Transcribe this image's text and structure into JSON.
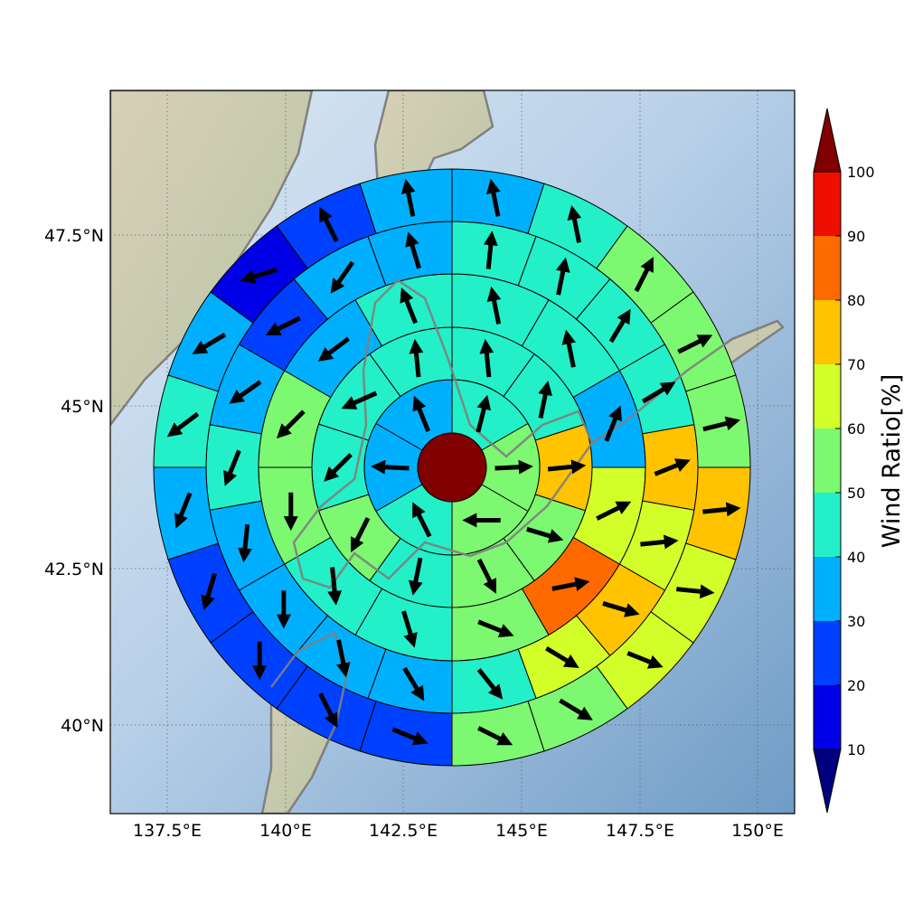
{
  "chart_data": {
    "type": "polar_sector_map",
    "map": {
      "lon_ticks": [
        137.5,
        140,
        142.5,
        145,
        147.5,
        150
      ],
      "lon_tick_labels": [
        "137.5°E",
        "140°E",
        "142.5°E",
        "145°E",
        "147.5°E",
        "150°E"
      ],
      "lat_ticks": [
        47.5,
        45,
        42.5,
        40
      ],
      "lat_tick_labels": [
        "47.5°N",
        "45°N",
        "42.5°N",
        "40°N"
      ],
      "lon_range": [
        136.3,
        150.7
      ],
      "lat_range": [
        38.6,
        49.5
      ],
      "grid": true
    },
    "center": {
      "lon": 143.5,
      "lat": 44.0,
      "value": 100,
      "arrow": null
    },
    "rings": [
      {
        "ring": 1,
        "sectors": [
          {
            "dir": "N",
            "value": 42,
            "arrow": [
              0.25,
              1
            ]
          },
          {
            "dir": "NE",
            "value": 55,
            "arrow": [
              1,
              0.05
            ]
          },
          {
            "dir": "E",
            "value": 53,
            "arrow": [
              -0.45,
              0
            ]
          },
          {
            "dir": "SE",
            "value": 42,
            "arrow": [
              -0.5,
              1
            ]
          },
          {
            "dir": "S",
            "value": 35,
            "arrow": [
              -1,
              0.05
            ]
          },
          {
            "dir": "SW",
            "value": 35,
            "arrow": [
              -0.4,
              1
            ]
          }
        ]
      },
      {
        "ring": 2,
        "sectors": [
          {
            "value": 45,
            "arrow": [
              -0.1,
              1
            ]
          },
          {
            "value": 45,
            "arrow": [
              0.2,
              1
            ]
          },
          {
            "value": 78,
            "arrow": [
              1,
              0.1
            ]
          },
          {
            "value": 53,
            "arrow": [
              1,
              -0.3
            ]
          },
          {
            "value": 53,
            "arrow": [
              0.5,
              -1
            ]
          },
          {
            "value": 45,
            "arrow": [
              -0.2,
              -1
            ]
          },
          {
            "value": 53,
            "arrow": [
              -0.5,
              -1
            ]
          },
          {
            "value": 45,
            "arrow": [
              -0.7,
              -0.7
            ]
          },
          {
            "value": 45,
            "arrow": [
              -0.9,
              -0.4
            ]
          },
          {
            "value": 45,
            "arrow": [
              -0.1,
              1
            ]
          }
        ]
      },
      {
        "ring": 3,
        "sectors": [
          {
            "value": 45,
            "arrow": [
              -0.2,
              1
            ]
          },
          {
            "value": 45,
            "arrow": [
              -0.2,
              1
            ]
          },
          {
            "value": 35,
            "arrow": [
              0.4,
              1
            ]
          },
          {
            "value": 65,
            "arrow": [
              1,
              0.5
            ]
          },
          {
            "value": 85,
            "arrow": [
              1,
              0.2
            ]
          },
          {
            "value": 55,
            "arrow": [
              1,
              -0.4
            ]
          },
          {
            "value": 45,
            "arrow": [
              0.3,
              -1
            ]
          },
          {
            "value": 45,
            "arrow": [
              0.1,
              -1
            ]
          },
          {
            "value": 55,
            "arrow": [
              0,
              -1
            ]
          },
          {
            "value": 55,
            "arrow": [
              -0.8,
              -0.8
            ]
          },
          {
            "value": 35,
            "arrow": [
              -0.8,
              -0.6
            ]
          },
          {
            "value": 45,
            "arrow": [
              -0.4,
              1
            ]
          }
        ]
      },
      {
        "ring": 4,
        "sectors": [
          {
            "value": 45,
            "arrow": [
              0.1,
              1
            ]
          },
          {
            "value": 45,
            "arrow": [
              0.2,
              1
            ]
          },
          {
            "value": 45,
            "arrow": [
              0.6,
              1
            ]
          },
          {
            "value": 45,
            "arrow": [
              1,
              0.6
            ]
          },
          {
            "value": 75,
            "arrow": [
              1,
              0.4
            ]
          },
          {
            "value": 65,
            "arrow": [
              1,
              0.1
            ]
          },
          {
            "value": 75,
            "arrow": [
              1,
              -0.3
            ]
          },
          {
            "value": 65,
            "arrow": [
              1,
              -0.6
            ]
          },
          {
            "value": 45,
            "arrow": [
              0.8,
              -1
            ]
          },
          {
            "value": 35,
            "arrow": [
              0.6,
              -1
            ]
          },
          {
            "value": 35,
            "arrow": [
              0.2,
              -1
            ]
          },
          {
            "value": 35,
            "arrow": [
              0,
              -1
            ]
          },
          {
            "value": 35,
            "arrow": [
              -0.1,
              -1
            ]
          },
          {
            "value": 45,
            "arrow": [
              -0.4,
              -1
            ]
          },
          {
            "value": 35,
            "arrow": [
              -1,
              -0.7
            ]
          },
          {
            "value": 25,
            "arrow": [
              -1,
              -0.5
            ]
          },
          {
            "value": 35,
            "arrow": [
              -0.7,
              -1
            ]
          },
          {
            "value": 35,
            "arrow": [
              -0.3,
              1
            ]
          }
        ]
      },
      {
        "ring": 5,
        "sectors": [
          {
            "value": 35,
            "arrow": [
              -0.2,
              1
            ]
          },
          {
            "value": 45,
            "arrow": [
              -0.2,
              1
            ]
          },
          {
            "value": 55,
            "arrow": [
              0.5,
              1
            ]
          },
          {
            "value": 55,
            "arrow": [
              1,
              0.5
            ]
          },
          {
            "value": 55,
            "arrow": [
              1,
              0.25
            ]
          },
          {
            "value": 75,
            "arrow": [
              1,
              0.1
            ]
          },
          {
            "value": 65,
            "arrow": [
              1,
              -0.1
            ]
          },
          {
            "value": 65,
            "arrow": [
              1,
              -0.4
            ]
          },
          {
            "value": 55,
            "arrow": [
              1,
              -0.6
            ]
          },
          {
            "value": 55,
            "arrow": [
              1,
              -0.5
            ]
          },
          {
            "value": 25,
            "arrow": [
              1,
              -0.4
            ]
          },
          {
            "value": 25,
            "arrow": [
              0.5,
              -1
            ]
          },
          {
            "value": 25,
            "arrow": [
              0,
              -1
            ]
          },
          {
            "value": 25,
            "arrow": [
              -0.3,
              -1
            ]
          },
          {
            "value": 35,
            "arrow": [
              -0.4,
              -1
            ]
          },
          {
            "value": 45,
            "arrow": [
              -0.8,
              -0.6
            ]
          },
          {
            "value": 35,
            "arrow": [
              -1,
              -0.6
            ]
          },
          {
            "value": 15,
            "arrow": [
              -1,
              -0.3
            ]
          },
          {
            "value": 25,
            "arrow": [
              -0.5,
              1
            ]
          },
          {
            "value": 35,
            "arrow": [
              -0.2,
              1
            ]
          }
        ]
      }
    ],
    "colorbar": {
      "label": "Wind Ratio[%]",
      "ticks": [
        10,
        20,
        30,
        40,
        50,
        60,
        70,
        80,
        90,
        100
      ],
      "levels": [
        {
          "from": 10,
          "to": 20,
          "color": "#0000e6"
        },
        {
          "from": 20,
          "to": 30,
          "color": "#0040ff"
        },
        {
          "from": 30,
          "to": 40,
          "color": "#00b0ff"
        },
        {
          "from": 40,
          "to": 50,
          "color": "#23f0c8"
        },
        {
          "from": 50,
          "to": 60,
          "color": "#7df871"
        },
        {
          "from": 60,
          "to": 70,
          "color": "#d2ff2a"
        },
        {
          "from": 70,
          "to": 80,
          "color": "#ffc300"
        },
        {
          "from": 80,
          "to": 90,
          "color": "#ff6a00"
        },
        {
          "from": 90,
          "to": 100,
          "color": "#ee0f00"
        }
      ],
      "under_color": "#00007f",
      "over_color": "#800000",
      "extend": "both"
    }
  }
}
